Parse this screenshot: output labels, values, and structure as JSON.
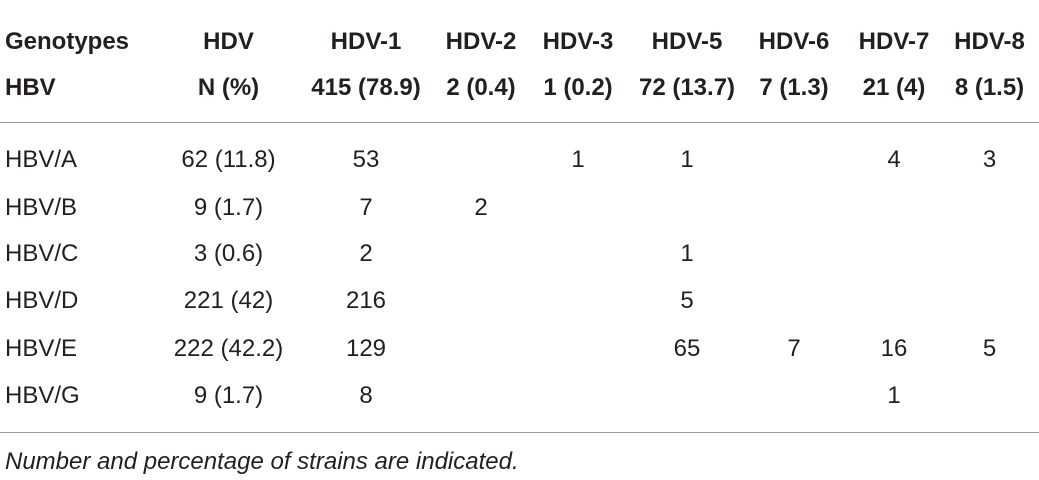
{
  "table": {
    "header": [
      [
        "Genotypes",
        "HDV",
        "HDV-1",
        "HDV-2",
        "HDV-3",
        "HDV-5",
        "HDV-6",
        "HDV-7",
        "HDV-8"
      ],
      [
        "HBV",
        "N (%)",
        "415 (78.9)",
        "2 (0.4)",
        "1 (0.2)",
        "72 (13.7)",
        "7 (1.3)",
        "21 (4)",
        "8 (1.5)"
      ]
    ],
    "rows": [
      [
        "HBV/A",
        "62 (11.8)",
        "53",
        null,
        "1",
        "1",
        null,
        "4",
        "3"
      ],
      [
        "HBV/B",
        "9 (1.7)",
        "7",
        "2",
        null,
        null,
        null,
        null,
        null
      ],
      [
        "HBV/C",
        "3 (0.6)",
        "2",
        null,
        null,
        "1",
        null,
        null,
        null
      ],
      [
        "HBV/D",
        "221 (42)",
        "216",
        null,
        null,
        "5",
        null,
        null,
        null
      ],
      [
        "HBV/E",
        "222 (42.2)",
        "129",
        null,
        null,
        "65",
        "7",
        "16",
        "5"
      ],
      [
        "HBV/G",
        "9 (1.7)",
        "8",
        null,
        null,
        null,
        null,
        "1",
        null
      ]
    ],
    "footnote": "Number and percentage of strains are indicated."
  }
}
